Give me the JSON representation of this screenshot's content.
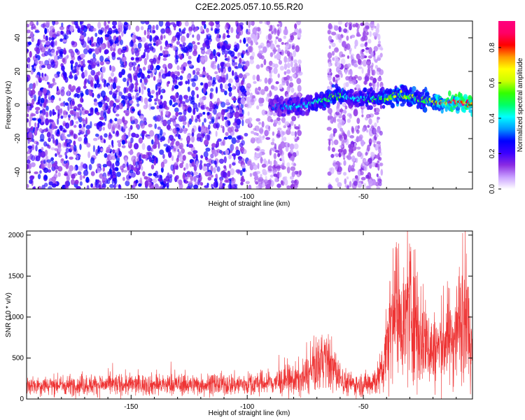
{
  "title": "C2E2.2025.057.10.55.R20",
  "colors": {
    "snr_line": "#ee3333",
    "spectrogram_points": "#7a22ee",
    "frame": "#000000"
  },
  "chart_data": [
    {
      "type": "heatmap",
      "xlabel": "Height of straight line (km)",
      "ylabel": "Frequency (Hz)",
      "xlim": [
        -195,
        -3
      ],
      "ylim": [
        -50,
        50
      ],
      "xticks": [
        -150,
        -100,
        -50
      ],
      "yticks": [
        -40,
        -20,
        0,
        20,
        40
      ],
      "colorbar": {
        "label": "Normalized spectral amplitude",
        "range": [
          0.0,
          0.95
        ],
        "ticks": [
          0.0,
          0.2,
          0.4,
          0.6,
          0.8
        ],
        "colormap": [
          "#ffffff",
          "#c9a0ff",
          "#8a2be2",
          "#3c00ff",
          "#0000ff",
          "#0099ff",
          "#00ffff",
          "#00ff66",
          "#33ff00",
          "#ccff00",
          "#ffff00",
          "#ff9900",
          "#ff0000",
          "#ff0066",
          "#ff007f"
        ]
      },
      "noise_regions": [
        {
          "x_range": [
            -195,
            -100
          ],
          "amplitude": 0.18
        },
        {
          "x_range": [
            -100,
            -88
          ],
          "amplitude": 0.08
        },
        {
          "x_range": [
            -88,
            -77
          ],
          "amplitude": 0.1
        },
        {
          "x_range": [
            -65,
            -42
          ],
          "amplitude": 0.1
        }
      ],
      "signal_ridge": {
        "x": [
          -90,
          -85,
          -80,
          -75,
          -70,
          -65,
          -60,
          -55,
          -50,
          -45,
          -40,
          -35,
          -30,
          -25,
          -20,
          -15,
          -10,
          -5,
          -3
        ],
        "frequency": [
          -1,
          -1,
          -1,
          0,
          2,
          4,
          6,
          4,
          4,
          4,
          4,
          6,
          5,
          3,
          2,
          1,
          2,
          1,
          0
        ],
        "amplitude": [
          0.3,
          0.35,
          0.4,
          0.4,
          0.45,
          0.55,
          0.55,
          0.4,
          0.45,
          0.5,
          0.55,
          0.6,
          0.6,
          0.55,
          0.65,
          0.85,
          0.9,
          0.85,
          0.85
        ]
      }
    },
    {
      "type": "line",
      "xlabel": "Height of straight line (km)",
      "ylabel": "SNR (10 * v/v)",
      "xlim": [
        -195,
        -3
      ],
      "ylim": [
        0,
        2050
      ],
      "xticks": [
        -150,
        -100,
        -50
      ],
      "yticks": [
        0,
        500,
        1000,
        1500,
        2000
      ],
      "series": [
        {
          "x": [
            -195,
            -180,
            -160,
            -140,
            -120,
            -100,
            -90,
            -80,
            -75,
            -72,
            -70,
            -68,
            -66,
            -64,
            -62,
            -60,
            -58,
            -56,
            -54,
            -52,
            -50,
            -48,
            -46,
            -44,
            -42,
            -40,
            -38,
            -36,
            -34,
            -32,
            -30,
            -28,
            -26,
            -24,
            -22,
            -20,
            -18,
            -16,
            -14,
            -12,
            -10,
            -8,
            -6,
            -5,
            -4,
            -3
          ],
          "mean": [
            170,
            170,
            175,
            175,
            175,
            180,
            200,
            230,
            260,
            330,
            420,
            480,
            470,
            420,
            330,
            260,
            210,
            190,
            180,
            175,
            175,
            190,
            220,
            240,
            320,
            700,
            980,
            1150,
            1050,
            900,
            1150,
            1050,
            820,
            720,
            680,
            560,
            620,
            680,
            760,
            720,
            820,
            1000,
            1150,
            1000,
            550,
            1100
          ],
          "spread": [
            110,
            110,
            120,
            120,
            120,
            130,
            140,
            180,
            200,
            240,
            300,
            330,
            320,
            300,
            250,
            180,
            150,
            130,
            120,
            120,
            130,
            150,
            170,
            190,
            260,
            550,
            650,
            750,
            650,
            650,
            900,
            800,
            650,
            550,
            500,
            430,
            460,
            500,
            550,
            520,
            600,
            700,
            750,
            650,
            420,
            700
          ]
        }
      ]
    }
  ]
}
